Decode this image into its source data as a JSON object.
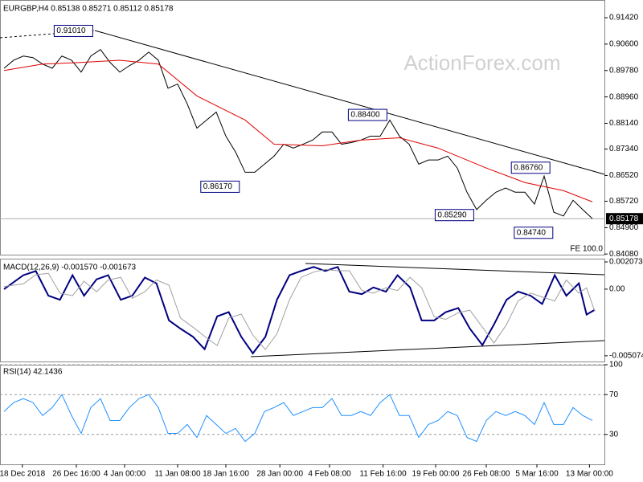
{
  "chart_data": [
    {
      "type": "line",
      "title": "EURGBP,H4  0.85138 0.85271 0.85112 0.85178",
      "watermark": "ActionForex.com",
      "note": "FE 100.0",
      "x": [
        0,
        1,
        2,
        3,
        4,
        5,
        6,
        7,
        8,
        9,
        10,
        11,
        12,
        13,
        14,
        15,
        16,
        17,
        18,
        19,
        20,
        21,
        22,
        23,
        24,
        25,
        26,
        27,
        28,
        29,
        30,
        31,
        32,
        33,
        34,
        35,
        36,
        37,
        38,
        39,
        40,
        41,
        42,
        43,
        44,
        45,
        46,
        47,
        48,
        49,
        50,
        51,
        52,
        53,
        54,
        55,
        56,
        57,
        58,
        59,
        60,
        61
      ],
      "series": [
        {
          "color": "#000000",
          "values": [
            0.8985,
            0.901,
            0.9023,
            0.9018,
            0.8998,
            0.8985,
            0.9023,
            0.901,
            0.8973,
            0.9023,
            0.9043,
            0.9003,
            0.8973,
            0.8993,
            0.901,
            0.9035,
            0.901,
            0.8923,
            0.8936,
            0.8874,
            0.8799,
            0.8824,
            0.8849,
            0.8774,
            0.8725,
            0.8662,
            0.8662,
            0.8687,
            0.8712,
            0.8749,
            0.8737,
            0.8749,
            0.8762,
            0.8787,
            0.8787,
            0.8749,
            0.8754,
            0.8762,
            0.8774,
            0.8774,
            0.8824,
            0.8774,
            0.8749,
            0.8687,
            0.87,
            0.87,
            0.8712,
            0.8675,
            0.86,
            0.8546,
            0.8575,
            0.86,
            0.8613,
            0.86,
            0.86,
            0.8563,
            0.865,
            0.8538,
            0.8526,
            0.8575,
            0.8546,
            0.8518
          ]
        },
        {
          "color": "#e00000",
          "x": [
            0,
            4,
            8,
            12,
            16,
            20,
            25,
            28,
            33,
            37,
            41,
            45,
            50,
            54,
            58,
            61
          ],
          "values": [
            0.8978,
            0.8998,
            0.9003,
            0.901,
            0.8998,
            0.8899,
            0.8824,
            0.8749,
            0.8744,
            0.8762,
            0.8769,
            0.8737,
            0.8675,
            0.863,
            0.8605,
            0.857
          ]
        }
      ],
      "ylim": [
        0.8406,
        0.9197
      ],
      "yticks": [
        {
          "value": 0.9142,
          "label": "0.91420"
        },
        {
          "value": 0.906,
          "label": "0.90600"
        },
        {
          "value": 0.8978,
          "label": "0.89780"
        },
        {
          "value": 0.8896,
          "label": "0.88960"
        },
        {
          "value": 0.8814,
          "label": "0.88140"
        },
        {
          "value": 0.8734,
          "label": "0.87340"
        },
        {
          "value": 0.8652,
          "label": "0.86520"
        },
        {
          "value": 0.8572,
          "label": "0.85720"
        },
        {
          "value": 0.849,
          "label": "0.84900"
        },
        {
          "value": 0.8408,
          "label": "0.84080"
        }
      ],
      "last_price": {
        "value": 0.85178,
        "label": "0.85178"
      },
      "annotations": [
        {
          "text": "0.91010",
          "value": 0.9101,
          "x": 5.2
        },
        {
          "text": "0.88400",
          "value": 0.884,
          "x": 35.7
        },
        {
          "text": "0.86170",
          "value": 0.8617,
          "x": 20.4
        },
        {
          "text": "0.85290",
          "value": 0.8529,
          "x": 44.7
        },
        {
          "text": "0.86760",
          "value": 0.8676,
          "x": 52.6
        },
        {
          "text": "0.84740",
          "value": 0.8474,
          "x": 52.9
        }
      ],
      "grid": false
    },
    {
      "type": "line",
      "title": "MACD(12,26,9) -0.001570 -0.001673",
      "x": [
        0,
        2,
        3.3,
        4.6,
        5.8,
        7.1,
        8.3,
        9.6,
        10.8,
        12.1,
        13.3,
        14.6,
        15.8,
        17.1,
        18.3,
        19.6,
        20.8,
        22.1,
        23.3,
        24.6,
        25.8,
        27.1,
        28.3,
        29.6,
        30.8,
        32.1,
        33.3,
        34.6,
        35.8,
        37.1,
        38.3,
        39.6,
        40.8,
        42.1,
        43.3,
        44.6,
        45.8,
        47.1,
        48.3,
        49.6,
        50.8,
        52.1,
        53.3,
        54.6,
        55.8,
        57.1,
        58.3,
        59.6,
        60.4,
        61.25
      ],
      "series": [
        {
          "color": "#000080",
          "values": [
            0,
            0.00106,
            0.00138,
            -0.0005,
            -0.00081,
            0.00106,
            -0.0005,
            0.00075,
            0.00106,
            -0.00081,
            -0.0005,
            0.00088,
            0.00044,
            -0.00238,
            -0.00301,
            -0.00363,
            -0.00457,
            -0.00207,
            -0.00175,
            -0.00363,
            -0.00489,
            -0.00363,
            -0.00081,
            0.00106,
            0.00138,
            0.00169,
            0.00138,
            0.00169,
            -0.00019,
            -0.00038,
            0.00013,
            -0.00019,
            0.00106,
            0.00013,
            -0.00238,
            -0.00238,
            -0.00175,
            -0.00144,
            -0.00301,
            -0.00426,
            -0.00269,
            -0.00081,
            -0.00019,
            -0.0005,
            -0.00113,
            0.00106,
            -0.0005,
            0.00044,
            -0.00194,
            -0.00157
          ]
        },
        {
          "color": "#a0a0a0",
          "values": [
            0.0002,
            0.0004,
            0.0011,
            0.0012,
            -0.0003,
            -0.0005,
            0.0006,
            -0.0002,
            0.0007,
            0.0009,
            -0.0007,
            -0.0002,
            0.0007,
            0.0003,
            -0.0022,
            -0.0029,
            -0.0036,
            -0.0043,
            -0.0022,
            -0.0019,
            -0.0035,
            -0.0046,
            -0.0034,
            -0.0008,
            0.0009,
            0.0013,
            0.0015,
            0.0014,
            0.0014,
            -0.0001,
            -0.0003,
            0.0001,
            -0.0001,
            0.0009,
            0.0001,
            -0.0021,
            -0.0023,
            -0.0018,
            -0.0016,
            -0.0029,
            -0.0041,
            -0.0027,
            -0.0009,
            -0.0003,
            -0.0006,
            -0.0009,
            0.0007,
            -0.0003,
            0.0001,
            -0.0017
          ]
        }
      ],
      "ylim": [
        -0.00551,
        0.00232
      ],
      "yticks": [
        0.002073,
        {
          "value": 0,
          "label": "0.00"
        },
        -0.005074
      ],
      "grid": false
    },
    {
      "type": "line",
      "title": "RSI(14) 42.1436",
      "x": [
        0,
        1,
        2,
        3,
        4,
        5,
        6,
        7,
        8,
        9,
        10,
        11,
        12,
        13,
        14,
        15,
        16,
        17,
        18,
        19,
        20,
        21,
        22,
        23,
        24,
        25,
        26,
        27,
        28,
        29,
        30,
        31,
        32,
        33,
        34,
        35,
        36,
        37,
        38,
        39,
        40,
        41,
        42,
        43,
        44,
        45,
        46,
        47,
        48,
        49,
        50,
        51,
        52,
        53,
        54,
        55,
        56,
        57,
        58,
        59,
        60,
        61
      ],
      "series": [
        {
          "color": "#1e90ff",
          "values": [
            53,
            62,
            66,
            62,
            49,
            57,
            70,
            49,
            31,
            57,
            66,
            44,
            44,
            57,
            66,
            70,
            57,
            31,
            31,
            40,
            27,
            49,
            40,
            31,
            36,
            23,
            31,
            53,
            57,
            62,
            49,
            53,
            57,
            57,
            66,
            49,
            49,
            53,
            49,
            62,
            70,
            49,
            49,
            27,
            40,
            44,
            53,
            49,
            27,
            23,
            44,
            53,
            49,
            53,
            49,
            40,
            62,
            40,
            40,
            57,
            49,
            44
          ]
        }
      ],
      "ylim": [
        0,
        100
      ],
      "yticks": [
        100,
        70,
        30
      ],
      "grid": true,
      "xticks": [
        {
          "value": 1.9,
          "label": "18 Dec 2018"
        },
        {
          "value": 7.5,
          "label": "26 Dec 16:00"
        },
        {
          "value": 12.5,
          "label": "4 Jan 00:00"
        },
        {
          "value": 18,
          "label": "11 Jan 08:00"
        },
        {
          "value": 23,
          "label": "18 Jan 16:00"
        },
        {
          "value": 28.6,
          "label": "28 Jan 00:00"
        },
        {
          "value": 33.75,
          "label": "4 Feb 08:00"
        },
        {
          "value": 39.3,
          "label": "11 Feb 16:00"
        },
        {
          "value": 44.75,
          "label": "19 Feb 00:00"
        },
        {
          "value": 50,
          "label": "26 Feb 08:00"
        },
        {
          "value": 55.25,
          "label": "5 Mar 16:00"
        },
        {
          "value": 60.7,
          "label": "13 Mar 00:00"
        }
      ]
    }
  ]
}
